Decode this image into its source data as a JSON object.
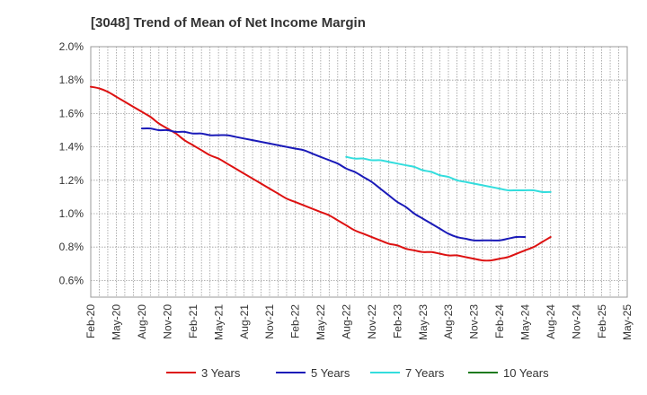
{
  "chart_data": {
    "type": "line",
    "title": "[3048]  Trend of Mean of Net Income Margin",
    "xlabel": "",
    "ylabel": "",
    "x_tick_labels": [
      "Feb-20",
      "May-20",
      "Aug-20",
      "Nov-20",
      "Feb-21",
      "May-21",
      "Aug-21",
      "Nov-21",
      "Feb-22",
      "May-22",
      "Aug-22",
      "Nov-22",
      "Feb-23",
      "May-23",
      "Aug-23",
      "Nov-23",
      "Feb-24",
      "May-24",
      "Aug-24",
      "Nov-24",
      "Feb-25",
      "May-25"
    ],
    "y_tick_labels": [
      "0.6%",
      "0.8%",
      "1.0%",
      "1.2%",
      "1.4%",
      "1.6%",
      "1.8%",
      "2.0%"
    ],
    "y_ticks": [
      0.6,
      0.8,
      1.0,
      1.2,
      1.4,
      1.6,
      1.8,
      2.0
    ],
    "ylim": [
      0.5,
      2.0
    ],
    "y_unit": "%",
    "grid": true,
    "legend_position": "bottom",
    "series": [
      {
        "name": "3 Years",
        "color": "#dd1111",
        "start_index": 0,
        "values": [
          1.76,
          1.75,
          1.73,
          1.7,
          1.67,
          1.64,
          1.61,
          1.58,
          1.54,
          1.51,
          1.48,
          1.44,
          1.41,
          1.38,
          1.35,
          1.33,
          1.3,
          1.27,
          1.24,
          1.21,
          1.18,
          1.15,
          1.12,
          1.09,
          1.07,
          1.05,
          1.03,
          1.01,
          0.99,
          0.96,
          0.93,
          0.9,
          0.88,
          0.86,
          0.84,
          0.82,
          0.81,
          0.79,
          0.78,
          0.77,
          0.77,
          0.76,
          0.75,
          0.75,
          0.74,
          0.73,
          0.72,
          0.72,
          0.73,
          0.74,
          0.76,
          0.78,
          0.8,
          0.83,
          0.86
        ]
      },
      {
        "name": "5 Years",
        "color": "#1a1ab8",
        "start_index": 6,
        "values": [
          1.51,
          1.51,
          1.5,
          1.5,
          1.49,
          1.49,
          1.48,
          1.48,
          1.47,
          1.47,
          1.47,
          1.46,
          1.45,
          1.44,
          1.43,
          1.42,
          1.41,
          1.4,
          1.39,
          1.38,
          1.36,
          1.34,
          1.32,
          1.3,
          1.27,
          1.25,
          1.22,
          1.19,
          1.15,
          1.11,
          1.07,
          1.04,
          1.0,
          0.97,
          0.94,
          0.91,
          0.88,
          0.86,
          0.85,
          0.84,
          0.84,
          0.84,
          0.84,
          0.85,
          0.86,
          0.86
        ]
      },
      {
        "name": "7 Years",
        "color": "#33dddd",
        "start_index": 30,
        "values": [
          1.34,
          1.33,
          1.33,
          1.32,
          1.32,
          1.31,
          1.3,
          1.29,
          1.28,
          1.26,
          1.25,
          1.23,
          1.22,
          1.2,
          1.19,
          1.18,
          1.17,
          1.16,
          1.15,
          1.14,
          1.14,
          1.14,
          1.14,
          1.13,
          1.13
        ]
      },
      {
        "name": "10 Years",
        "color": "#1e7a1e",
        "start_index": 0,
        "values": []
      }
    ]
  }
}
